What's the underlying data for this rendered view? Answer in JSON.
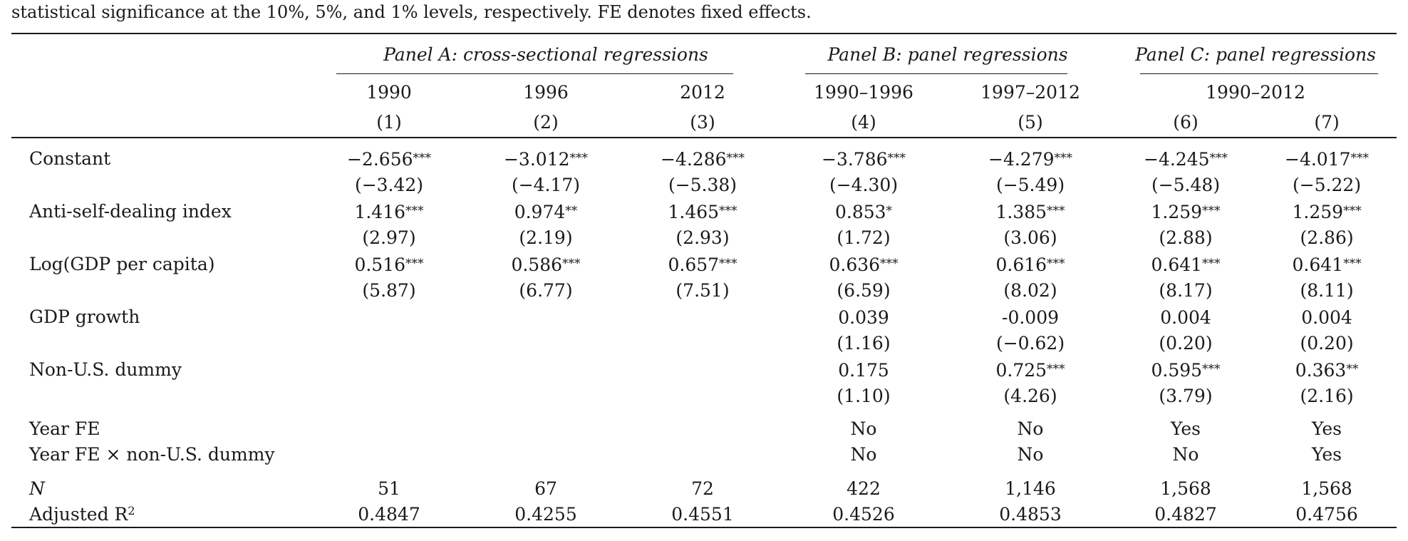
{
  "caption": "statistical significance at the 10%, 5%, and 1% levels, respectively. FE denotes fixed effects.",
  "panels": {
    "a": "Panel A: cross-sectional regressions",
    "b": "Panel B: panel regressions",
    "c": "Panel C: panel regressions"
  },
  "periods": [
    "1990",
    "1996",
    "2012",
    "1990–1996",
    "1997–2012",
    "1990–2012"
  ],
  "columns": [
    "(1)",
    "(2)",
    "(3)",
    "(4)",
    "(5)",
    "(6)",
    "(7)"
  ],
  "rows": {
    "constant": {
      "label": "Constant",
      "coef": [
        "−2.656",
        "−3.012",
        "−4.286",
        "−3.786",
        "−4.279",
        "−4.245",
        "−4.017"
      ],
      "stars": [
        "***",
        "***",
        "***",
        "***",
        "***",
        "***",
        "***"
      ],
      "t": [
        "(−3.42)",
        "(−4.17)",
        "(−5.38)",
        "(−4.30)",
        "(−5.49)",
        "(−5.48)",
        "(−5.22)"
      ]
    },
    "anti_self_dealing": {
      "label": "Anti-self-dealing index",
      "coef": [
        "1.416",
        "0.974",
        "1.465",
        "0.853",
        "1.385",
        "1.259",
        "1.259"
      ],
      "stars": [
        "***",
        "**",
        "***",
        "*",
        "***",
        "***",
        "***"
      ],
      "t": [
        "(2.97)",
        "(2.19)",
        "(2.93)",
        "(1.72)",
        "(3.06)",
        "(2.88)",
        "(2.86)"
      ]
    },
    "log_gdp": {
      "label": "Log(GDP per capita)",
      "coef": [
        "0.516",
        "0.586",
        "0.657",
        "0.636",
        "0.616",
        "0.641",
        "0.641"
      ],
      "stars": [
        "***",
        "***",
        "***",
        "***",
        "***",
        "***",
        "***"
      ],
      "t": [
        "(5.87)",
        "(6.77)",
        "(7.51)",
        "(6.59)",
        "(8.02)",
        "(8.17)",
        "(8.11)"
      ]
    },
    "gdp_growth": {
      "label": "GDP growth",
      "coef": [
        "",
        "",
        "",
        "0.039",
        "-0.009",
        "0.004",
        "0.004"
      ],
      "stars": [
        "",
        "",
        "",
        "",
        "",
        "",
        ""
      ],
      "t": [
        "",
        "",
        "",
        "(1.16)",
        "(−0.62)",
        "(0.20)",
        "(0.20)"
      ]
    },
    "non_us": {
      "label": "Non-U.S. dummy",
      "coef": [
        "",
        "",
        "",
        "0.175",
        "0.725",
        "0.595",
        "0.363"
      ],
      "stars": [
        "",
        "",
        "",
        "",
        "***",
        "***",
        "**"
      ],
      "t": [
        "",
        "",
        "",
        "(1.10)",
        "(4.26)",
        "(3.79)",
        "(2.16)"
      ]
    }
  },
  "year_fe": {
    "label": "Year FE",
    "values": [
      "",
      "",
      "",
      "No",
      "No",
      "Yes",
      "Yes"
    ]
  },
  "year_fe_x": {
    "label": "Year FE × non-U.S. dummy",
    "values": [
      "",
      "",
      "",
      "No",
      "No",
      "No",
      "Yes"
    ]
  },
  "n": {
    "label": "N",
    "values": [
      "51",
      "67",
      "72",
      "422",
      "1,146",
      "1,568",
      "1,568"
    ]
  },
  "adj_r2": {
    "label": "Adjusted R",
    "label_sup": "2",
    "values": [
      "0.4847",
      "0.4255",
      "0.4551",
      "0.4526",
      "0.4853",
      "0.4827",
      "0.4756"
    ]
  }
}
